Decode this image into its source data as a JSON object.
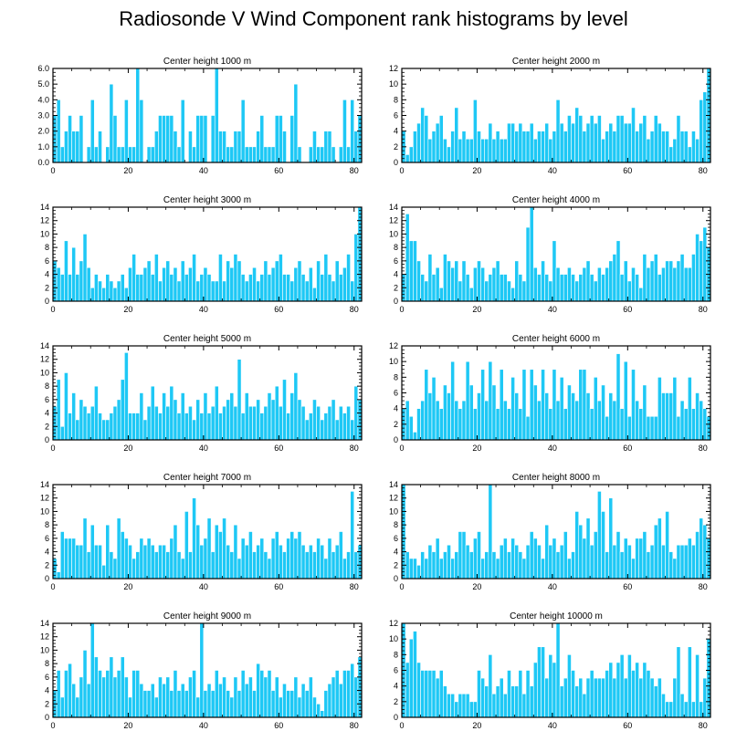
{
  "title": "Radiosonde V Wind Component rank histograms by level",
  "colors": {
    "bar": "#1ec8f5",
    "bar_edge": "#ffffff",
    "axis": "#000000"
  },
  "chart_data": [
    {
      "type": "bar",
      "title": "Center height 1000 m",
      "ylim": [
        0,
        6
      ],
      "yticks": [
        "0.0",
        "1.0",
        "2.0",
        "3.0",
        "4.0",
        "5.0",
        "6.0"
      ],
      "xlim": [
        0,
        82
      ],
      "xticks": [
        0,
        20,
        40,
        60,
        80
      ],
      "values": [
        3,
        4,
        1,
        2,
        3,
        2,
        2,
        3,
        0,
        1,
        4,
        1,
        2,
        0,
        1,
        5,
        3,
        1,
        1,
        4,
        1,
        1,
        6,
        4,
        0,
        1,
        1,
        2,
        3,
        3,
        3,
        3,
        2,
        1,
        4,
        0,
        2,
        1,
        3,
        3,
        3,
        0,
        3,
        6,
        2,
        2,
        1,
        1,
        2,
        2,
        4,
        1,
        1,
        1,
        2,
        3,
        1,
        1,
        1,
        3,
        3,
        2,
        0,
        3,
        5,
        1,
        0,
        0,
        1,
        2,
        1,
        1,
        2,
        2,
        1,
        0,
        1,
        4,
        1,
        4,
        2,
        3
      ]
    },
    {
      "type": "bar",
      "title": "Center height 2000 m",
      "ylim": [
        0,
        12
      ],
      "yticks": [
        "0",
        "2",
        "4",
        "6",
        "8",
        "10",
        "12"
      ],
      "xlim": [
        0,
        82
      ],
      "xticks": [
        0,
        20,
        40,
        60,
        80
      ],
      "values": [
        4,
        1,
        2,
        4,
        5,
        7,
        6,
        3,
        4,
        5,
        6,
        3,
        2,
        4,
        7,
        3,
        4,
        3,
        3,
        8,
        4,
        3,
        3,
        5,
        3,
        4,
        3,
        3,
        5,
        5,
        4,
        5,
        4,
        4,
        5,
        3,
        4,
        4,
        5,
        3,
        4,
        8,
        5,
        4,
        6,
        5,
        7,
        6,
        4,
        5,
        6,
        5,
        6,
        3,
        4,
        5,
        4,
        6,
        6,
        5,
        5,
        7,
        4,
        5,
        6,
        3,
        4,
        6,
        5,
        4,
        4,
        2,
        3,
        6,
        4,
        4,
        2,
        4,
        3,
        8,
        9,
        12
      ]
    },
    {
      "type": "bar",
      "title": "Center height 3000 m",
      "ylim": [
        0,
        14
      ],
      "yticks": [
        "0",
        "2",
        "4",
        "6",
        "8",
        "10",
        "12",
        "14"
      ],
      "xlim": [
        0,
        82
      ],
      "xticks": [
        0,
        20,
        40,
        60,
        80
      ],
      "values": [
        6,
        5,
        4,
        9,
        4,
        8,
        4,
        6,
        10,
        5,
        2,
        4,
        3,
        2,
        4,
        3,
        2,
        3,
        4,
        2,
        5,
        7,
        4,
        4,
        5,
        6,
        4,
        7,
        3,
        5,
        6,
        4,
        5,
        3,
        6,
        4,
        5,
        7,
        3,
        4,
        5,
        4,
        3,
        3,
        7,
        3,
        6,
        5,
        7,
        6,
        4,
        3,
        4,
        5,
        3,
        4,
        6,
        4,
        5,
        6,
        7,
        4,
        4,
        3,
        5,
        6,
        4,
        3,
        5,
        2,
        6,
        4,
        7,
        4,
        3,
        6,
        4,
        5,
        7,
        3,
        10,
        14
      ]
    },
    {
      "type": "bar",
      "title": "Center height 4000 m",
      "ylim": [
        0,
        14
      ],
      "yticks": [
        "0",
        "2",
        "4",
        "6",
        "8",
        "10",
        "12",
        "14"
      ],
      "xlim": [
        0,
        82
      ],
      "xticks": [
        0,
        20,
        40,
        60,
        80
      ],
      "values": [
        4,
        13,
        9,
        9,
        6,
        4,
        3,
        7,
        4,
        5,
        2,
        7,
        6,
        5,
        6,
        3,
        6,
        4,
        2,
        5,
        6,
        5,
        3,
        4,
        5,
        6,
        4,
        4,
        3,
        2,
        6,
        4,
        3,
        11,
        14,
        5,
        4,
        6,
        4,
        3,
        9,
        5,
        4,
        4,
        5,
        4,
        3,
        4,
        5,
        6,
        4,
        3,
        5,
        4,
        5,
        6,
        7,
        9,
        4,
        6,
        3,
        5,
        4,
        2,
        7,
        5,
        6,
        7,
        4,
        5,
        6,
        6,
        5,
        6,
        7,
        5,
        5,
        7,
        10,
        9,
        11,
        8
      ]
    },
    {
      "type": "bar",
      "title": "Center height 5000 m",
      "ylim": [
        0,
        14
      ],
      "yticks": [
        "0",
        "2",
        "4",
        "6",
        "8",
        "10",
        "12",
        "14"
      ],
      "xlim": [
        0,
        82
      ],
      "xticks": [
        0,
        20,
        40,
        60,
        80
      ],
      "values": [
        5,
        9,
        2,
        10,
        4,
        7,
        3,
        6,
        5,
        4,
        5,
        8,
        4,
        3,
        3,
        4,
        5,
        6,
        9,
        13,
        4,
        4,
        4,
        7,
        3,
        5,
        8,
        5,
        4,
        7,
        5,
        8,
        6,
        4,
        7,
        4,
        5,
        3,
        6,
        4,
        7,
        4,
        5,
        8,
        4,
        5,
        6,
        7,
        5,
        12,
        4,
        7,
        5,
        5,
        6,
        4,
        5,
        7,
        6,
        8,
        5,
        9,
        4,
        7,
        10,
        6,
        5,
        3,
        4,
        6,
        5,
        3,
        4,
        5,
        6,
        3,
        5,
        4,
        5,
        3,
        8,
        6
      ]
    },
    {
      "type": "bar",
      "title": "Center height 6000 m",
      "ylim": [
        0,
        12
      ],
      "yticks": [
        "0",
        "2",
        "4",
        "6",
        "8",
        "10",
        "12"
      ],
      "xlim": [
        0,
        82
      ],
      "xticks": [
        0,
        20,
        40,
        60,
        80
      ],
      "values": [
        4,
        5,
        3,
        1,
        4,
        5,
        9,
        6,
        8,
        5,
        4,
        7,
        6,
        10,
        5,
        4,
        5,
        10,
        7,
        4,
        6,
        9,
        5,
        10,
        7,
        4,
        9,
        5,
        4,
        8,
        6,
        4,
        9,
        3,
        9,
        7,
        5,
        9,
        6,
        4,
        9,
        5,
        8,
        4,
        7,
        6,
        5,
        9,
        9,
        6,
        4,
        8,
        5,
        7,
        3,
        6,
        5,
        11,
        4,
        10,
        3,
        9,
        5,
        4,
        7,
        3,
        3,
        3,
        8,
        6,
        6,
        6,
        8,
        3,
        5,
        4,
        8,
        4,
        6,
        5,
        4,
        3
      ]
    },
    {
      "type": "bar",
      "title": "Center height 7000 m",
      "ylim": [
        0,
        14
      ],
      "yticks": [
        "0",
        "2",
        "4",
        "6",
        "8",
        "10",
        "12",
        "14"
      ],
      "xlim": [
        0,
        82
      ],
      "xticks": [
        0,
        20,
        40,
        60,
        80
      ],
      "values": [
        3,
        1,
        7,
        6,
        6,
        6,
        5,
        5,
        9,
        4,
        8,
        5,
        5,
        2,
        8,
        4,
        3,
        9,
        7,
        6,
        5,
        3,
        4,
        6,
        5,
        6,
        5,
        4,
        5,
        5,
        4,
        6,
        8,
        4,
        3,
        10,
        4,
        12,
        8,
        5,
        6,
        9,
        4,
        8,
        7,
        9,
        5,
        4,
        8,
        3,
        6,
        5,
        7,
        4,
        5,
        6,
        4,
        3,
        6,
        7,
        5,
        4,
        6,
        7,
        6,
        7,
        5,
        4,
        5,
        4,
        6,
        5,
        3,
        6,
        4,
        5,
        7,
        3,
        4,
        13,
        4,
        5
      ]
    },
    {
      "type": "bar",
      "title": "Center height 8000 m",
      "ylim": [
        0,
        14
      ],
      "yticks": [
        "0",
        "2",
        "4",
        "6",
        "8",
        "10",
        "12",
        "14"
      ],
      "xlim": [
        0,
        82
      ],
      "xticks": [
        0,
        20,
        40,
        60,
        80
      ],
      "values": [
        14,
        4,
        3,
        3,
        2,
        4,
        3,
        5,
        4,
        6,
        3,
        4,
        5,
        3,
        4,
        7,
        7,
        5,
        4,
        6,
        7,
        3,
        4,
        14,
        4,
        3,
        5,
        6,
        4,
        6,
        5,
        4,
        3,
        5,
        7,
        6,
        5,
        3,
        8,
        5,
        6,
        4,
        5,
        7,
        3,
        4,
        10,
        8,
        6,
        9,
        5,
        7,
        13,
        10,
        4,
        12,
        5,
        7,
        4,
        6,
        5,
        3,
        6,
        6,
        7,
        4,
        5,
        8,
        9,
        5,
        10,
        4,
        3,
        5,
        5,
        5,
        6,
        5,
        7,
        9,
        8,
        6
      ]
    },
    {
      "type": "bar",
      "title": "Center height 9000 m",
      "ylim": [
        0,
        14
      ],
      "yticks": [
        "0",
        "2",
        "4",
        "6",
        "8",
        "10",
        "12",
        "14"
      ],
      "xlim": [
        0,
        82
      ],
      "xticks": [
        0,
        20,
        40,
        60,
        80
      ],
      "values": [
        4,
        7,
        3,
        7,
        8,
        5,
        3,
        6,
        10,
        5,
        14,
        9,
        7,
        6,
        7,
        9,
        6,
        7,
        9,
        6,
        3,
        7,
        7,
        5,
        4,
        4,
        5,
        3,
        6,
        5,
        6,
        4,
        7,
        4,
        5,
        4,
        6,
        7,
        3,
        14,
        4,
        5,
        4,
        7,
        5,
        6,
        4,
        3,
        6,
        4,
        7,
        5,
        6,
        4,
        8,
        7,
        6,
        7,
        4,
        6,
        3,
        5,
        4,
        4,
        6,
        3,
        5,
        4,
        6,
        3,
        2,
        1,
        4,
        5,
        6,
        7,
        5,
        7,
        7,
        8,
        6,
        9
      ]
    },
    {
      "type": "bar",
      "title": "Center height 10000 m",
      "ylim": [
        0,
        12
      ],
      "yticks": [
        "0",
        "2",
        "4",
        "6",
        "8",
        "10",
        "12"
      ],
      "xlim": [
        0,
        82
      ],
      "xticks": [
        0,
        20,
        40,
        60,
        80
      ],
      "values": [
        12,
        7,
        10,
        11,
        7,
        6,
        6,
        6,
        6,
        5,
        6,
        4,
        3,
        3,
        2,
        3,
        3,
        3,
        2,
        2,
        6,
        5,
        4,
        8,
        3,
        4,
        5,
        3,
        6,
        4,
        4,
        6,
        3,
        6,
        4,
        7,
        9,
        9,
        5,
        8,
        7,
        12,
        4,
        5,
        8,
        6,
        4,
        5,
        3,
        5,
        6,
        5,
        5,
        5,
        6,
        7,
        5,
        7,
        8,
        5,
        8,
        6,
        7,
        5,
        7,
        6,
        5,
        4,
        5,
        3,
        2,
        2,
        5,
        9,
        3,
        2,
        9,
        2,
        8,
        2,
        5,
        10
      ]
    }
  ]
}
